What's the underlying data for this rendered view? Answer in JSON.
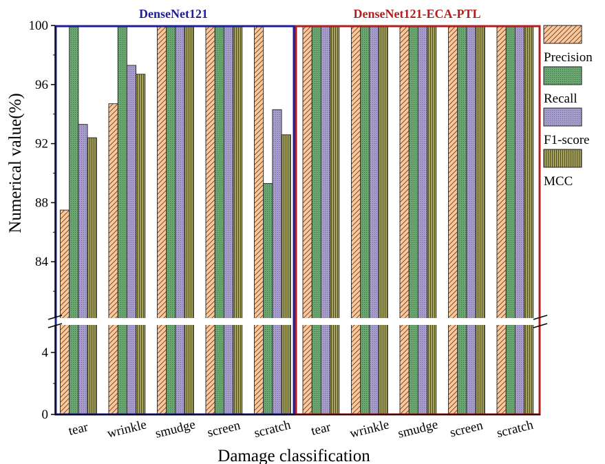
{
  "chart_data": {
    "type": "bar",
    "xlabel": "Damage classification",
    "ylabel": "Numerical value(%)",
    "yticks_lower": [
      "0",
      "4"
    ],
    "yticks_upper": [
      "84",
      "88",
      "92",
      "96",
      "100"
    ],
    "ylim_lower": [
      0,
      6
    ],
    "ylim_upper": [
      80,
      100
    ],
    "axis_break": true,
    "legend_position": "right",
    "panels": [
      {
        "title": "DenseNet121",
        "frame_color": "#1e1e96",
        "title_color": "#1e1e96",
        "categories": [
          "tear",
          "wrinkle",
          "smudge",
          "screen",
          "scratch"
        ],
        "series": [
          {
            "name": "Precision",
            "values": [
              87.5,
              94.7,
              100,
              100,
              100
            ]
          },
          {
            "name": "Recall",
            "values": [
              100,
              100,
              100,
              100,
              89.3
            ]
          },
          {
            "name": "F1-score",
            "values": [
              93.3,
              97.3,
              100,
              100,
              94.3
            ]
          },
          {
            "name": "MCC",
            "values": [
              92.4,
              96.7,
              100,
              100,
              92.6
            ]
          }
        ]
      },
      {
        "title": "DenseNet121-ECA-PTL",
        "frame_color": "#b01e1e",
        "title_color": "#b01e1e",
        "categories": [
          "tear",
          "wrinkle",
          "smudge",
          "screen",
          "scratch"
        ],
        "series": [
          {
            "name": "Precision",
            "values": [
              100,
              100,
              100,
              100,
              100
            ]
          },
          {
            "name": "Recall",
            "values": [
              100,
              100,
              100,
              100,
              100
            ]
          },
          {
            "name": "F1-score",
            "values": [
              100,
              100,
              100,
              100,
              100
            ]
          },
          {
            "name": "MCC",
            "values": [
              100,
              100,
              100,
              100,
              100
            ]
          }
        ]
      }
    ],
    "series_colors": {
      "Precision": "#fcc79b",
      "Recall": "#6aa66f",
      "F1-score": "#a69cc9",
      "MCC": "#9f9d55"
    }
  }
}
